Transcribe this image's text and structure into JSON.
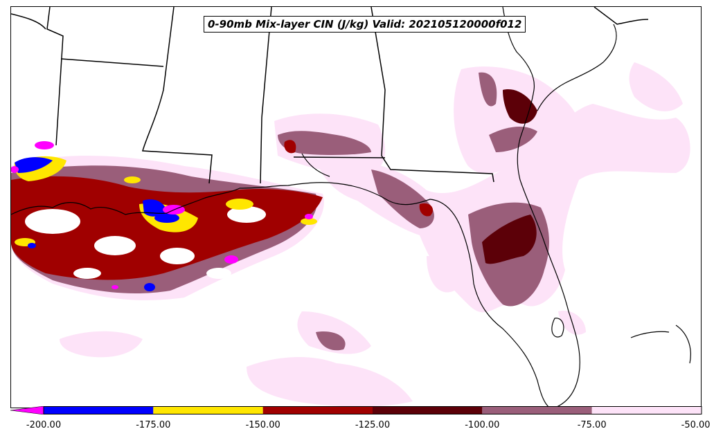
{
  "title": "0-90mb Mix-layer CIN (J/kg) Valid: 202105120000f012",
  "colorbar": {
    "ticks": [
      "-200.00",
      "-175.00",
      "-150.00",
      "-125.00",
      "-100.00",
      "-75.00",
      "-50.00"
    ],
    "bins": [
      {
        "range": "< -200",
        "color": "#ff00ff"
      },
      {
        "range": "-200 to -175",
        "color": "#0000ff"
      },
      {
        "range": "-175 to -150",
        "color": "#ffe600"
      },
      {
        "range": "-150 to -125",
        "color": "#a00000"
      },
      {
        "range": "-125 to -100",
        "color": "#5c0008"
      },
      {
        "range": "-100 to -75",
        "color": "#9a5e7a"
      },
      {
        "range": "-75 to -50",
        "color": "#fde3f8"
      }
    ],
    "extend": "min"
  },
  "map": {
    "region": "Southeastern United States and northern Gulf of Mexico",
    "boundaries": [
      "state-borders",
      "coastlines"
    ]
  }
}
